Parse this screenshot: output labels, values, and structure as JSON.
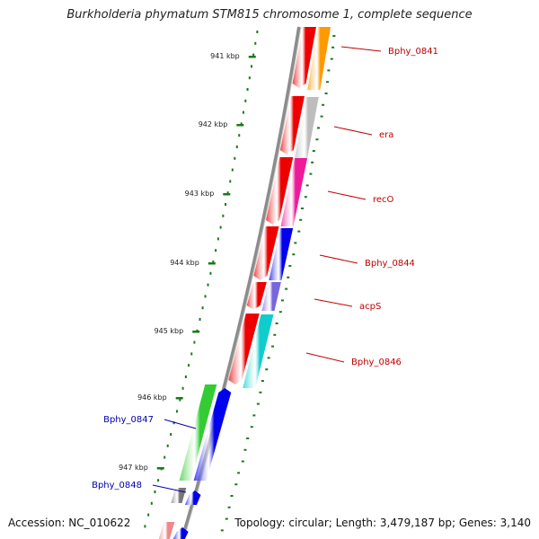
{
  "title": "Burkholderia phymatum STM815 chromosome 1, complete sequence",
  "accession": "Accession: NC_010622",
  "topology": "Topology: circular; Length: 3,479,187 bp; Genes: 3,140",
  "colors": {
    "background": "#ffffff",
    "backbone": "#8c8c8c",
    "tick": "#1a7a1a",
    "forward_label": "#c00000",
    "reverse_label": "#0000aa"
  },
  "scale_labels": [
    "941 kbp",
    "942 kbp",
    "943 kbp",
    "944 kbp",
    "945 kbp",
    "946 kbp",
    "947 kbp"
  ],
  "gene_labels": [
    {
      "name": "Bphy_0841",
      "strand": "forward"
    },
    {
      "name": "era",
      "strand": "forward"
    },
    {
      "name": "recO",
      "strand": "forward"
    },
    {
      "name": "Bphy_0844",
      "strand": "forward"
    },
    {
      "name": "acpS",
      "strand": "forward"
    },
    {
      "name": "Bphy_0846",
      "strand": "forward"
    },
    {
      "name": "Bphy_0847",
      "strand": "reverse"
    },
    {
      "name": "Bphy_0848",
      "strand": "reverse"
    }
  ],
  "gene_colors": {
    "Bphy_0841": "#ff9900",
    "era": "#bdbdbd",
    "recO": "#ee1a9a",
    "Bphy_0844": "#0000ee",
    "acpS": "#7766dd",
    "Bphy_0846": "#11cccc",
    "Bphy_0847": "#33cc33",
    "Bphy_0848": "#777777",
    "forward_cds": "#ee0000",
    "reverse_cds": "#0000ee",
    "partial_reverse": "#ee8888"
  }
}
